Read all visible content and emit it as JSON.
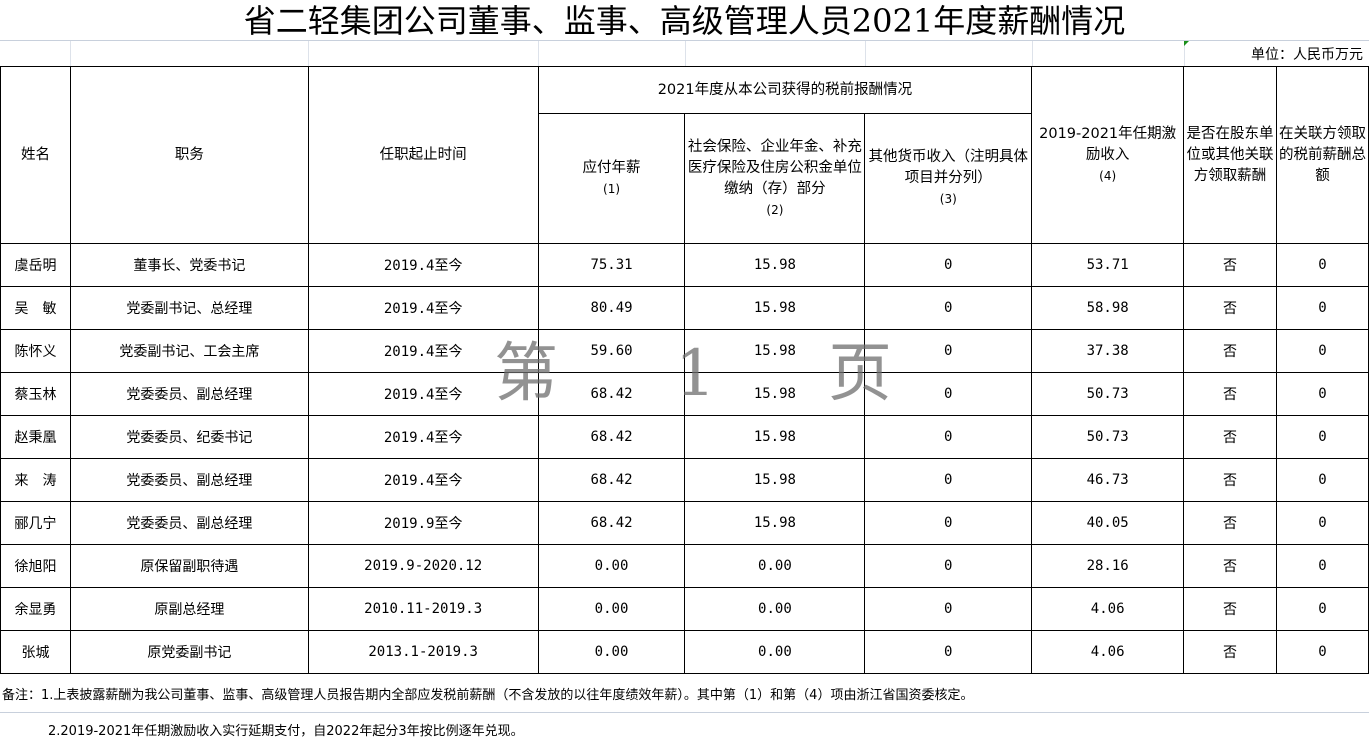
{
  "title": "省二轻集团公司董事、监事、高级管理人员2021年度薪酬情况",
  "unit": "单位：人民币万元",
  "headers": {
    "name": "姓名",
    "position": "职务",
    "term": "任职起止时间",
    "group": "2021年度从本公司获得的税前报酬情况",
    "salary": "应付年薪",
    "salary_no": "(1)",
    "insurance": "社会保险、企业年金、补充医疗保险及住房公积金单位缴纳（存）部分",
    "insurance_no": "(2)",
    "other": "其他货币收入（注明具体项目并分列）",
    "other_no": "(3)",
    "incentive": "2019-2021年任期激励收入",
    "incentive_no": "(4)",
    "related": "是否在股东单位或其他关联方领取薪酬",
    "related_total": "在关联方领取的税前薪酬总额"
  },
  "rows": [
    {
      "name": "虞岳明",
      "position": "董事长、党委书记",
      "term": "2019.4至今",
      "salary": "75.31",
      "insurance": "15.98",
      "other": "0",
      "incentive": "53.71",
      "related": "否",
      "related_total": "0"
    },
    {
      "name": "吴　敏",
      "position": "党委副书记、总经理",
      "term": "2019.4至今",
      "salary": "80.49",
      "insurance": "15.98",
      "other": "0",
      "incentive": "58.98",
      "related": "否",
      "related_total": "0"
    },
    {
      "name": "陈怀义",
      "position": "党委副书记、工会主席",
      "term": "2019.4至今",
      "salary": "59.60",
      "insurance": "15.98",
      "other": "0",
      "incentive": "37.38",
      "related": "否",
      "related_total": "0"
    },
    {
      "name": "蔡玉林",
      "position": "党委委员、副总经理",
      "term": "2019.4至今",
      "salary": "68.42",
      "insurance": "15.98",
      "other": "0",
      "incentive": "50.73",
      "related": "否",
      "related_total": "0"
    },
    {
      "name": "赵秉凰",
      "position": "党委委员、纪委书记",
      "term": "2019.4至今",
      "salary": "68.42",
      "insurance": "15.98",
      "other": "0",
      "incentive": "50.73",
      "related": "否",
      "related_total": "0"
    },
    {
      "name": "来　涛",
      "position": "党委委员、副总经理",
      "term": "2019.4至今",
      "salary": "68.42",
      "insurance": "15.98",
      "other": "0",
      "incentive": "46.73",
      "related": "否",
      "related_total": "0"
    },
    {
      "name": "郦几宁",
      "position": "党委委员、副总经理",
      "term": "2019.9至今",
      "salary": "68.42",
      "insurance": "15.98",
      "other": "0",
      "incentive": "40.05",
      "related": "否",
      "related_total": "0"
    },
    {
      "name": "徐旭阳",
      "position": "原保留副职待遇",
      "term": "2019.9-2020.12",
      "salary": "0.00",
      "insurance": "0.00",
      "other": "0",
      "incentive": "28.16",
      "related": "否",
      "related_total": "0"
    },
    {
      "name": "余显勇",
      "position": "原副总经理",
      "term": "2010.11-2019.3",
      "salary": "0.00",
      "insurance": "0.00",
      "other": "0",
      "incentive": "4.06",
      "related": "否",
      "related_total": "0"
    },
    {
      "name": "张城",
      "position": "原党委副书记",
      "term": "2013.1-2019.3",
      "salary": "0.00",
      "insurance": "0.00",
      "other": "0",
      "incentive": "4.06",
      "related": "否",
      "related_total": "0"
    }
  ],
  "watermark": "第 1 页",
  "notes": [
    "备注：1.上表披露薪酬为我公司董事、监事、高级管理人员报告期内全部应发税前薪酬（不含发放的以往年度绩效年薪）。其中第（1）和第（4）项由浙江省国资委核定。",
    "2.2019-2021年任期激励收入实行延期支付，自2022年起分3年按比例逐年兑现。"
  ]
}
